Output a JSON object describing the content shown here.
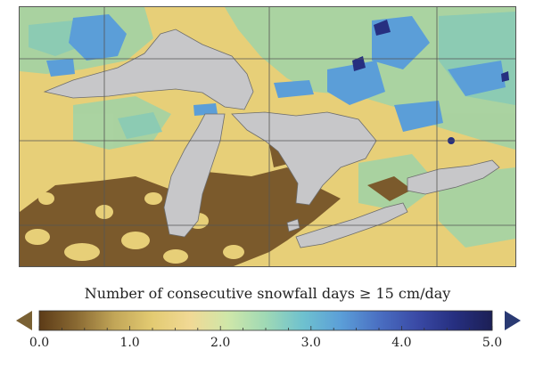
{
  "map": {
    "colors": {
      "land_yellow": "#e7cf78",
      "land_green": "#a6d3a3",
      "land_teal": "#8ccbb3",
      "snow_blue": "#5b9ed8",
      "snow_navy": "#262f80",
      "no_snow_brown": "#7b5a2c",
      "water": "#c7c7c9",
      "grid": "#555555"
    }
  },
  "colorbar": {
    "title": "Number of consecutive snowfall days ≥ 15 cm/day",
    "min": 0.0,
    "max": 5.0,
    "tick_labels": [
      "0.0",
      "1.0",
      "2.0",
      "3.0",
      "4.0",
      "5.0"
    ],
    "stops": [
      "#5c3b17",
      "#8a6a33",
      "#c2a658",
      "#e3cb72",
      "#f1d995",
      "#cfe7a9",
      "#9fd9b5",
      "#6ec1cf",
      "#5b9ed8",
      "#4a6fc2",
      "#3a4aa6",
      "#262f80",
      "#1c1f55"
    ],
    "under_color": "#7a6134",
    "over_color": "#2a3a73"
  }
}
